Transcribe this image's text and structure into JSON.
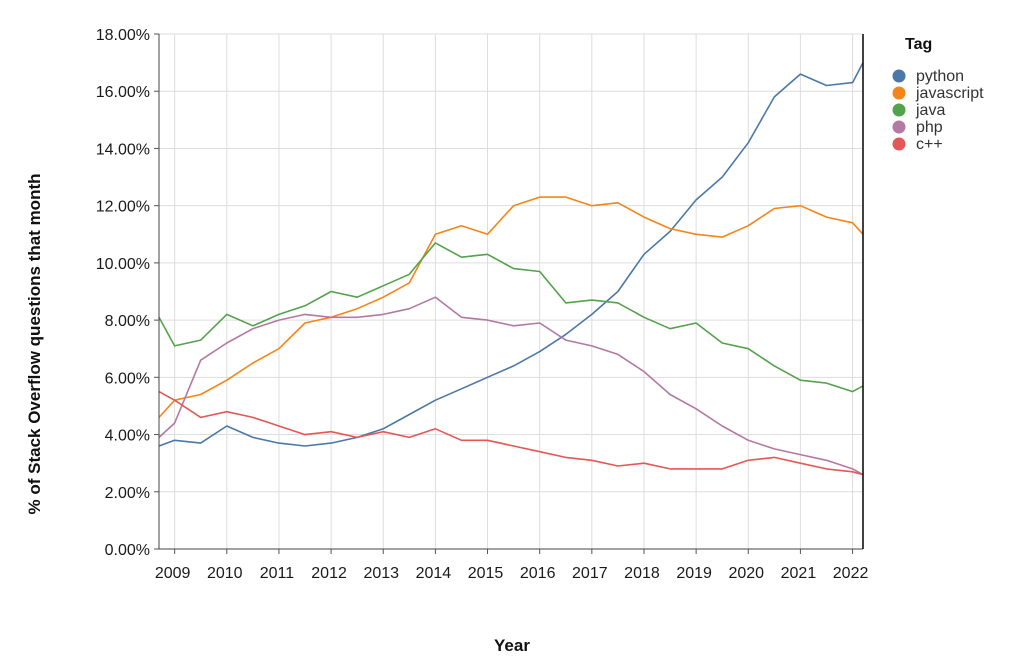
{
  "chart_data": {
    "type": "line",
    "title": "",
    "xlabel": "Year",
    "ylabel": "% of Stack Overflow questions that month",
    "x_ticks": [
      "2009",
      "2010",
      "2011",
      "2012",
      "2013",
      "2014",
      "2015",
      "2016",
      "2017",
      "2018",
      "2019",
      "2020",
      "2021",
      "2022"
    ],
    "y_ticks": [
      "0.00%",
      "2.00%",
      "4.00%",
      "6.00%",
      "8.00%",
      "10.00%",
      "12.00%",
      "14.00%",
      "16.00%",
      "18.00%"
    ],
    "xlim": [
      2008.7,
      2022.2
    ],
    "ylim": [
      0,
      18
    ],
    "grid": true,
    "legend": {
      "title": "Tag",
      "position": "top-right"
    },
    "series": [
      {
        "name": "python",
        "color": "#4c78a8",
        "x": [
          2008.7,
          2009.0,
          2009.5,
          2010.0,
          2010.5,
          2011.0,
          2011.5,
          2012.0,
          2012.5,
          2013.0,
          2013.5,
          2014.0,
          2014.5,
          2015.0,
          2015.5,
          2016.0,
          2016.5,
          2017.0,
          2017.5,
          2018.0,
          2018.5,
          2019.0,
          2019.5,
          2020.0,
          2020.5,
          2021.0,
          2021.5,
          2022.0,
          2022.2
        ],
        "y": [
          3.6,
          3.8,
          3.7,
          4.3,
          3.9,
          3.7,
          3.6,
          3.7,
          3.9,
          4.2,
          4.7,
          5.2,
          5.6,
          6.0,
          6.4,
          6.9,
          7.5,
          8.2,
          9.0,
          10.3,
          11.1,
          12.2,
          13.0,
          14.2,
          15.8,
          16.6,
          16.2,
          16.3,
          17.0
        ]
      },
      {
        "name": "javascript",
        "color": "#f58518",
        "x": [
          2008.7,
          2009.0,
          2009.5,
          2010.0,
          2010.5,
          2011.0,
          2011.5,
          2012.0,
          2012.5,
          2013.0,
          2013.5,
          2014.0,
          2014.5,
          2015.0,
          2015.5,
          2016.0,
          2016.5,
          2017.0,
          2017.5,
          2018.0,
          2018.5,
          2019.0,
          2019.5,
          2020.0,
          2020.5,
          2021.0,
          2021.5,
          2022.0,
          2022.2
        ],
        "y": [
          4.6,
          5.2,
          5.4,
          5.9,
          6.5,
          7.0,
          7.9,
          8.1,
          8.4,
          8.8,
          9.3,
          11.0,
          11.3,
          11.0,
          12.0,
          12.3,
          12.3,
          12.0,
          12.1,
          11.6,
          11.2,
          11.0,
          10.9,
          11.3,
          11.9,
          12.0,
          11.6,
          11.4,
          11.0
        ]
      },
      {
        "name": "java",
        "color": "#54a24b",
        "x": [
          2008.7,
          2009.0,
          2009.5,
          2010.0,
          2010.5,
          2011.0,
          2011.5,
          2012.0,
          2012.5,
          2013.0,
          2013.5,
          2014.0,
          2014.5,
          2015.0,
          2015.5,
          2016.0,
          2016.5,
          2017.0,
          2017.5,
          2018.0,
          2018.5,
          2019.0,
          2019.5,
          2020.0,
          2020.5,
          2021.0,
          2021.5,
          2022.0,
          2022.2
        ],
        "y": [
          8.1,
          7.1,
          7.3,
          8.2,
          7.8,
          8.2,
          8.5,
          9.0,
          8.8,
          9.2,
          9.6,
          10.7,
          10.2,
          10.3,
          9.8,
          9.7,
          8.6,
          8.7,
          8.6,
          8.1,
          7.7,
          7.9,
          7.2,
          7.0,
          6.4,
          5.9,
          5.8,
          5.5,
          5.7
        ]
      },
      {
        "name": "php",
        "color": "#b279a2",
        "x": [
          2008.7,
          2009.0,
          2009.5,
          2010.0,
          2010.5,
          2011.0,
          2011.5,
          2012.0,
          2012.5,
          2013.0,
          2013.5,
          2014.0,
          2014.5,
          2015.0,
          2015.5,
          2016.0,
          2016.5,
          2017.0,
          2017.5,
          2018.0,
          2018.5,
          2019.0,
          2019.5,
          2020.0,
          2020.5,
          2021.0,
          2021.5,
          2022.0,
          2022.2
        ],
        "y": [
          3.9,
          4.4,
          6.6,
          7.2,
          7.7,
          8.0,
          8.2,
          8.1,
          8.1,
          8.2,
          8.4,
          8.8,
          8.1,
          8.0,
          7.8,
          7.9,
          7.3,
          7.1,
          6.8,
          6.2,
          5.4,
          4.9,
          4.3,
          3.8,
          3.5,
          3.3,
          3.1,
          2.8,
          2.6
        ]
      },
      {
        "name": "c++",
        "color": "#e45756",
        "x": [
          2008.7,
          2009.0,
          2009.5,
          2010.0,
          2010.5,
          2011.0,
          2011.5,
          2012.0,
          2012.5,
          2013.0,
          2013.5,
          2014.0,
          2014.5,
          2015.0,
          2015.5,
          2016.0,
          2016.5,
          2017.0,
          2017.5,
          2018.0,
          2018.5,
          2019.0,
          2019.5,
          2020.0,
          2020.5,
          2021.0,
          2021.5,
          2022.0,
          2022.2
        ],
        "y": [
          5.5,
          5.2,
          4.6,
          4.8,
          4.6,
          4.3,
          4.0,
          4.1,
          3.9,
          4.1,
          3.9,
          4.2,
          3.8,
          3.8,
          3.6,
          3.4,
          3.2,
          3.1,
          2.9,
          3.0,
          2.8,
          2.8,
          2.8,
          3.1,
          3.2,
          3.0,
          2.8,
          2.7,
          2.6
        ]
      }
    ]
  }
}
